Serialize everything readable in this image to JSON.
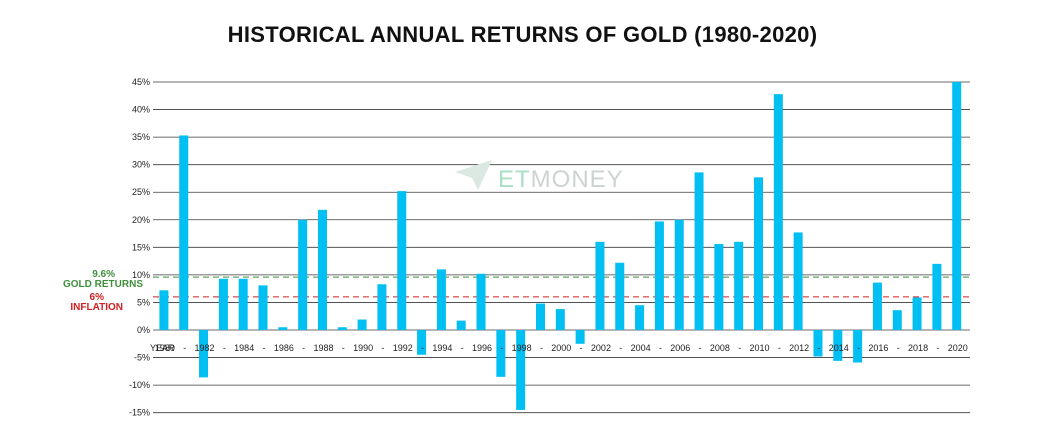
{
  "chart_data": {
    "type": "bar",
    "title": "HISTORICAL ANNUAL RETURNS OF GOLD (1980-2020)",
    "xlabel": "YEAR",
    "ylabel": "",
    "ylim": [
      -15,
      45
    ],
    "ytick_labels": [
      "45%",
      "40%",
      "35%",
      "30%",
      "25%",
      "20%",
      "15%",
      "10%",
      "5%",
      "0%",
      "-5%",
      "-10%",
      "-15%"
    ],
    "ytick_values": [
      45,
      40,
      35,
      30,
      25,
      20,
      15,
      10,
      5,
      0,
      -5,
      -10,
      -15
    ],
    "x_labels": [
      "1980",
      "-",
      "1982",
      "-",
      "1984",
      "-",
      "1986",
      "-",
      "1988",
      "-",
      "1990",
      "-",
      "1992",
      "-",
      "1994",
      "-",
      "1996",
      "-",
      "1998",
      "-",
      "2000",
      "-",
      "2002",
      "-",
      "2004",
      "-",
      "2006",
      "-",
      "2008",
      "-",
      "2010",
      "-",
      "2012",
      "-",
      "2014",
      "-",
      "2016",
      "-",
      "2018",
      "-",
      "2020"
    ],
    "values": [
      7.2,
      35.3,
      -8.6,
      9.3,
      9.3,
      8.1,
      0.5,
      20.0,
      21.8,
      0.5,
      1.9,
      8.3,
      25.2,
      -4.5,
      11.0,
      1.7,
      10.2,
      -8.5,
      -14.5,
      4.8,
      3.8,
      -2.5,
      16.0,
      12.2,
      4.5,
      19.7,
      20.0,
      28.6,
      15.6,
      16.0,
      27.7,
      42.8,
      17.7,
      -4.8,
      -5.6,
      -5.9,
      8.6,
      3.6,
      5.9,
      12.0,
      45.0
    ],
    "bar_color": "#00bff3",
    "grid": true,
    "reference_lines": [
      {
        "value": 9.6,
        "label_value": "9.6%",
        "label_text": "GOLD RETURNS",
        "color": "#3f8f3c",
        "style": "dashed"
      },
      {
        "value": 6.0,
        "label_value": "6%",
        "label_text": "INFLATION",
        "color": "#d21f1f",
        "style": "dashed"
      }
    ]
  },
  "watermark": {
    "prefix": "ET",
    "suffix": "MONEY"
  }
}
